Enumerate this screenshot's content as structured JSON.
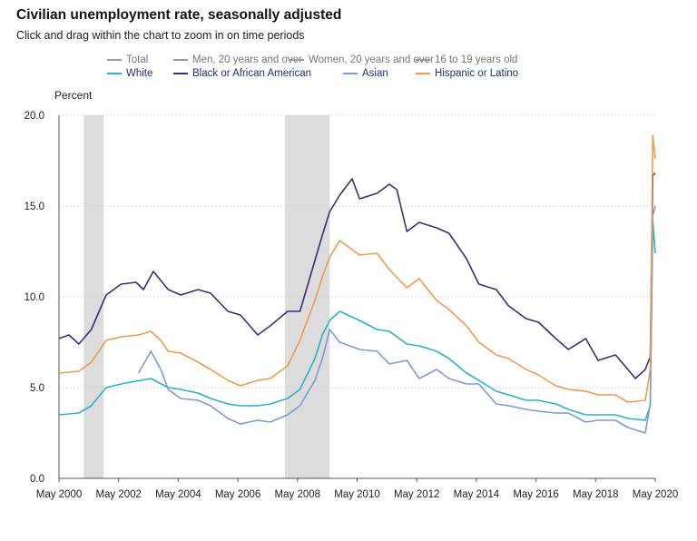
{
  "title": "Civilian unemployment rate, seasonally adjusted",
  "subtitle": "Click and drag within the chart to zoom in on time periods",
  "legend": [
    {
      "label": "Total",
      "color": "#9a9a9a",
      "active": false
    },
    {
      "label": "Men, 20 years and over",
      "color": "#9a9a9a",
      "active": false
    },
    {
      "label": "Women, 20 years and over",
      "color": "#9a9a9a",
      "active": false
    },
    {
      "label": "16 to 19 years old",
      "color": "#9a9a9a",
      "active": false
    },
    {
      "label": "White",
      "color": "#2bb3c4",
      "active": true
    },
    {
      "label": "Black or African American",
      "color": "#3f2a78",
      "active": true
    },
    {
      "label": "Asian",
      "color": "#7b9ad6",
      "active": true
    },
    {
      "label": "Hispanic or Latino",
      "color": "#ee9a4c",
      "active": true
    }
  ],
  "chart_data": {
    "type": "line",
    "ylabel": "Percent",
    "ylim": [
      0,
      20
    ],
    "yticks": [
      "0.0",
      "5.0",
      "10.0",
      "15.0",
      "20.0"
    ],
    "xlim": [
      "2000-05",
      "2020-05"
    ],
    "xticks": [
      "May 2000",
      "May 2002",
      "May 2004",
      "May 2006",
      "May 2008",
      "May 2010",
      "May 2012",
      "May 2014",
      "May 2016",
      "May 2018",
      "May 2020"
    ],
    "grid": "horizontal dotted",
    "recessions": [
      [
        "2001-03",
        "2001-11"
      ],
      [
        "2007-12",
        "2009-06"
      ]
    ],
    "recession_color": "#dcdcdc",
    "series": [
      {
        "name": "White",
        "color": "#2bb3c4",
        "points": [
          [
            "2000-05",
            3.5
          ],
          [
            "2001-01",
            3.6
          ],
          [
            "2001-06",
            4.0
          ],
          [
            "2001-12",
            5.0
          ],
          [
            "2002-06",
            5.2
          ],
          [
            "2003-06",
            5.5
          ],
          [
            "2004-01",
            5.0
          ],
          [
            "2004-06",
            4.9
          ],
          [
            "2005-01",
            4.7
          ],
          [
            "2005-06",
            4.4
          ],
          [
            "2006-01",
            4.1
          ],
          [
            "2006-06",
            4.0
          ],
          [
            "2007-01",
            4.0
          ],
          [
            "2007-06",
            4.1
          ],
          [
            "2008-01",
            4.4
          ],
          [
            "2008-06",
            4.9
          ],
          [
            "2008-12",
            6.6
          ],
          [
            "2009-03",
            7.9
          ],
          [
            "2009-06",
            8.7
          ],
          [
            "2009-10",
            9.2
          ],
          [
            "2010-06",
            8.7
          ],
          [
            "2011-01",
            8.2
          ],
          [
            "2011-06",
            8.1
          ],
          [
            "2012-01",
            7.4
          ],
          [
            "2012-06",
            7.3
          ],
          [
            "2013-01",
            7.0
          ],
          [
            "2013-06",
            6.6
          ],
          [
            "2014-01",
            5.8
          ],
          [
            "2014-06",
            5.4
          ],
          [
            "2015-01",
            4.8
          ],
          [
            "2015-06",
            4.6
          ],
          [
            "2016-01",
            4.3
          ],
          [
            "2016-06",
            4.3
          ],
          [
            "2017-01",
            4.1
          ],
          [
            "2017-06",
            3.8
          ],
          [
            "2018-01",
            3.5
          ],
          [
            "2018-06",
            3.5
          ],
          [
            "2019-01",
            3.5
          ],
          [
            "2019-06",
            3.3
          ],
          [
            "2020-01",
            3.2
          ],
          [
            "2020-03",
            4.0
          ],
          [
            "2020-04",
            14.2
          ],
          [
            "2020-05",
            12.4
          ]
        ]
      },
      {
        "name": "Black or African American",
        "color": "#3f2a78",
        "points": [
          [
            "2000-05",
            7.7
          ],
          [
            "2000-09",
            7.9
          ],
          [
            "2001-01",
            7.4
          ],
          [
            "2001-06",
            8.2
          ],
          [
            "2001-12",
            10.1
          ],
          [
            "2002-06",
            10.7
          ],
          [
            "2002-12",
            10.8
          ],
          [
            "2003-03",
            10.4
          ],
          [
            "2003-07",
            11.4
          ],
          [
            "2004-01",
            10.4
          ],
          [
            "2004-06",
            10.1
          ],
          [
            "2005-01",
            10.4
          ],
          [
            "2005-06",
            10.2
          ],
          [
            "2006-01",
            9.2
          ],
          [
            "2006-06",
            9.0
          ],
          [
            "2007-01",
            7.9
          ],
          [
            "2007-06",
            8.4
          ],
          [
            "2008-01",
            9.2
          ],
          [
            "2008-06",
            9.2
          ],
          [
            "2008-12",
            12.0
          ],
          [
            "2009-03",
            13.4
          ],
          [
            "2009-06",
            14.7
          ],
          [
            "2009-10",
            15.6
          ],
          [
            "2010-03",
            16.5
          ],
          [
            "2010-06",
            15.4
          ],
          [
            "2011-01",
            15.7
          ],
          [
            "2011-06",
            16.2
          ],
          [
            "2011-09",
            15.9
          ],
          [
            "2012-01",
            13.6
          ],
          [
            "2012-06",
            14.1
          ],
          [
            "2013-01",
            13.8
          ],
          [
            "2013-06",
            13.5
          ],
          [
            "2014-01",
            12.1
          ],
          [
            "2014-06",
            10.7
          ],
          [
            "2015-01",
            10.4
          ],
          [
            "2015-06",
            9.5
          ],
          [
            "2016-01",
            8.8
          ],
          [
            "2016-06",
            8.6
          ],
          [
            "2017-01",
            7.7
          ],
          [
            "2017-06",
            7.1
          ],
          [
            "2018-01",
            7.7
          ],
          [
            "2018-06",
            6.5
          ],
          [
            "2019-01",
            6.8
          ],
          [
            "2019-06",
            6.0
          ],
          [
            "2019-09",
            5.5
          ],
          [
            "2020-01",
            6.0
          ],
          [
            "2020-03",
            6.7
          ],
          [
            "2020-04",
            16.7
          ],
          [
            "2020-05",
            16.8
          ]
        ]
      },
      {
        "name": "Asian",
        "color": "#7b9ad6",
        "points": [
          [
            "2003-01",
            5.8
          ],
          [
            "2003-06",
            7.0
          ],
          [
            "2003-10",
            6.0
          ],
          [
            "2004-01",
            4.9
          ],
          [
            "2004-06",
            4.4
          ],
          [
            "2005-01",
            4.3
          ],
          [
            "2005-06",
            4.0
          ],
          [
            "2006-01",
            3.3
          ],
          [
            "2006-06",
            3.0
          ],
          [
            "2007-01",
            3.2
          ],
          [
            "2007-06",
            3.1
          ],
          [
            "2008-01",
            3.5
          ],
          [
            "2008-06",
            4.0
          ],
          [
            "2008-12",
            5.4
          ],
          [
            "2009-03",
            6.6
          ],
          [
            "2009-06",
            8.2
          ],
          [
            "2009-10",
            7.5
          ],
          [
            "2010-06",
            7.1
          ],
          [
            "2011-01",
            7.0
          ],
          [
            "2011-06",
            6.3
          ],
          [
            "2012-01",
            6.5
          ],
          [
            "2012-06",
            5.5
          ],
          [
            "2013-01",
            6.0
          ],
          [
            "2013-06",
            5.5
          ],
          [
            "2014-01",
            5.2
          ],
          [
            "2014-06",
            5.2
          ],
          [
            "2015-01",
            4.1
          ],
          [
            "2015-06",
            4.0
          ],
          [
            "2016-01",
            3.8
          ],
          [
            "2016-06",
            3.7
          ],
          [
            "2017-01",
            3.6
          ],
          [
            "2017-06",
            3.6
          ],
          [
            "2018-01",
            3.1
          ],
          [
            "2018-06",
            3.2
          ],
          [
            "2019-01",
            3.2
          ],
          [
            "2019-06",
            2.8
          ],
          [
            "2020-01",
            2.5
          ],
          [
            "2020-03",
            4.1
          ],
          [
            "2020-04",
            14.5
          ],
          [
            "2020-05",
            15.0
          ]
        ]
      },
      {
        "name": "Hispanic or Latino",
        "color": "#ee9a4c",
        "points": [
          [
            "2000-05",
            5.8
          ],
          [
            "2001-01",
            5.9
          ],
          [
            "2001-06",
            6.4
          ],
          [
            "2001-12",
            7.6
          ],
          [
            "2002-06",
            7.8
          ],
          [
            "2003-01",
            7.9
          ],
          [
            "2003-06",
            8.1
          ],
          [
            "2003-10",
            7.6
          ],
          [
            "2004-01",
            7.0
          ],
          [
            "2004-06",
            6.9
          ],
          [
            "2005-01",
            6.4
          ],
          [
            "2005-06",
            6.0
          ],
          [
            "2006-01",
            5.4
          ],
          [
            "2006-06",
            5.1
          ],
          [
            "2007-01",
            5.4
          ],
          [
            "2007-06",
            5.5
          ],
          [
            "2008-01",
            6.2
          ],
          [
            "2008-06",
            7.6
          ],
          [
            "2008-12",
            9.8
          ],
          [
            "2009-03",
            11.1
          ],
          [
            "2009-06",
            12.2
          ],
          [
            "2009-10",
            13.1
          ],
          [
            "2010-06",
            12.3
          ],
          [
            "2011-01",
            12.4
          ],
          [
            "2011-06",
            11.5
          ],
          [
            "2012-01",
            10.5
          ],
          [
            "2012-06",
            11.0
          ],
          [
            "2013-01",
            9.8
          ],
          [
            "2013-06",
            9.3
          ],
          [
            "2014-01",
            8.4
          ],
          [
            "2014-06",
            7.5
          ],
          [
            "2015-01",
            6.8
          ],
          [
            "2015-06",
            6.6
          ],
          [
            "2016-01",
            6.0
          ],
          [
            "2016-06",
            5.7
          ],
          [
            "2017-01",
            5.1
          ],
          [
            "2017-06",
            4.9
          ],
          [
            "2018-01",
            4.8
          ],
          [
            "2018-06",
            4.6
          ],
          [
            "2019-01",
            4.6
          ],
          [
            "2019-06",
            4.2
          ],
          [
            "2020-01",
            4.3
          ],
          [
            "2020-03",
            6.0
          ],
          [
            "2020-04",
            18.9
          ],
          [
            "2020-05",
            17.6
          ]
        ]
      }
    ]
  }
}
